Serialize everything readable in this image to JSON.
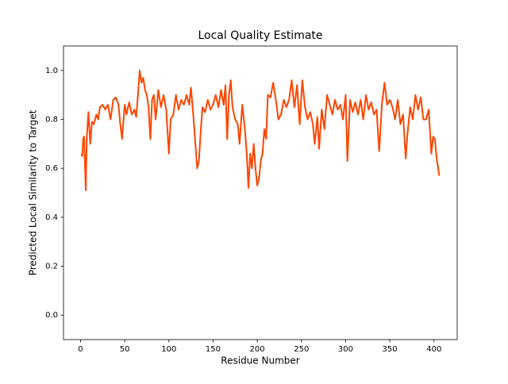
{
  "chart_data": {
    "type": "line",
    "title": "Local Quality Estimate",
    "xlabel": "Residue Number",
    "ylabel": "Predicted Local Similarity to Target",
    "x": [
      1,
      2,
      3,
      4,
      6,
      7,
      9,
      11,
      13,
      15,
      18,
      20,
      22,
      25,
      28,
      31,
      34,
      37,
      40,
      43,
      45,
      47,
      50,
      52,
      55,
      58,
      61,
      63,
      65,
      67,
      69,
      71,
      73,
      75,
      77,
      79,
      81,
      83,
      85,
      88,
      91,
      94,
      97,
      100,
      102,
      105,
      108,
      111,
      114,
      117,
      120,
      123,
      125,
      128,
      130,
      132,
      134,
      136,
      138,
      141,
      144,
      147,
      150,
      153,
      156,
      159,
      162,
      164,
      166,
      168,
      170,
      172,
      175,
      178,
      180,
      183,
      186,
      188,
      190,
      192,
      194,
      196,
      198,
      200,
      202,
      204,
      206,
      208,
      210,
      212,
      215,
      218,
      221,
      224,
      227,
      230,
      233,
      236,
      239,
      242,
      245,
      248,
      251,
      254,
      257,
      260,
      263,
      265,
      268,
      270,
      273,
      276,
      279,
      282,
      285,
      288,
      291,
      294,
      297,
      300,
      302,
      305,
      308,
      311,
      314,
      317,
      320,
      323,
      326,
      329,
      332,
      335,
      338,
      341,
      344,
      347,
      350,
      353,
      356,
      359,
      362,
      365,
      368,
      370,
      373,
      376,
      379,
      382,
      385,
      388,
      391,
      394,
      397,
      399,
      401,
      403,
      406
    ],
    "series": [
      {
        "color": "#ff4500",
        "values": [
          0.66,
          0.65,
          0.72,
          0.73,
          0.51,
          0.72,
          0.83,
          0.7,
          0.79,
          0.78,
          0.82,
          0.8,
          0.85,
          0.86,
          0.84,
          0.86,
          0.8,
          0.88,
          0.89,
          0.86,
          0.78,
          0.72,
          0.86,
          0.82,
          0.87,
          0.82,
          0.84,
          0.81,
          0.9,
          1.0,
          0.95,
          0.97,
          0.92,
          0.9,
          0.85,
          0.72,
          0.88,
          0.9,
          0.8,
          0.92,
          0.85,
          0.9,
          0.84,
          0.66,
          0.8,
          0.82,
          0.9,
          0.84,
          0.88,
          0.86,
          0.9,
          0.86,
          0.93,
          0.8,
          0.7,
          0.6,
          0.63,
          0.75,
          0.85,
          0.83,
          0.88,
          0.84,
          0.86,
          0.9,
          0.85,
          0.92,
          0.86,
          0.94,
          0.72,
          0.9,
          0.96,
          0.85,
          0.8,
          0.78,
          0.7,
          0.86,
          0.76,
          0.67,
          0.52,
          0.66,
          0.6,
          0.7,
          0.6,
          0.53,
          0.56,
          0.63,
          0.66,
          0.76,
          0.72,
          0.9,
          0.89,
          0.95,
          0.88,
          0.8,
          0.82,
          0.88,
          0.85,
          0.88,
          0.96,
          0.85,
          0.94,
          0.78,
          0.96,
          0.85,
          0.8,
          0.83,
          0.78,
          0.7,
          0.81,
          0.68,
          0.84,
          0.76,
          0.9,
          0.86,
          0.82,
          0.88,
          0.84,
          0.86,
          0.8,
          0.9,
          0.63,
          0.88,
          0.83,
          0.87,
          0.82,
          0.88,
          0.8,
          0.9,
          0.84,
          0.87,
          0.82,
          0.84,
          0.67,
          0.86,
          0.95,
          0.86,
          0.88,
          0.85,
          0.8,
          0.88,
          0.78,
          0.82,
          0.64,
          0.74,
          0.85,
          0.8,
          0.9,
          0.84,
          0.89,
          0.8,
          0.8,
          0.84,
          0.66,
          0.73,
          0.72,
          0.64,
          0.57
        ]
      }
    ],
    "xlim": [
      -19.25,
      426.25
    ],
    "xticks": [
      0,
      50,
      100,
      150,
      200,
      250,
      300,
      350,
      400
    ],
    "ylim": [
      -0.1,
      1.1
    ],
    "yticks": [
      {
        "value": 0,
        "label": "0.0"
      },
      0.2,
      0.4,
      0.6,
      0.8,
      {
        "value": 1,
        "label": "1.0"
      }
    ]
  }
}
